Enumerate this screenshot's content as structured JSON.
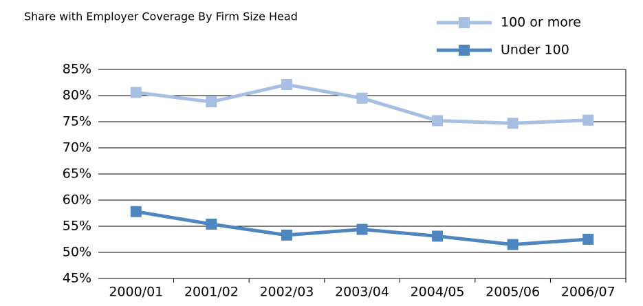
{
  "chart_data": {
    "type": "line",
    "title": "Share with Employer Coverage By Firm Size Head",
    "categories": [
      "2000/01",
      "2001/02",
      "2002/03",
      "2003/04",
      "2004/05",
      "2005/06",
      "2006/07"
    ],
    "series": [
      {
        "name": "100 or more",
        "color": "#a7bfe2",
        "values": [
          80.6,
          78.8,
          82.1,
          79.5,
          75.2,
          74.7,
          75.3
        ]
      },
      {
        "name": "Under 100",
        "color": "#4f86c0",
        "values": [
          57.8,
          55.4,
          53.3,
          54.4,
          53.1,
          51.5,
          52.5
        ]
      }
    ],
    "ylim": [
      45,
      85
    ],
    "yticks": [
      {
        "value": 45,
        "label": "45%"
      },
      {
        "value": 50,
        "label": "50%"
      },
      {
        "value": 55,
        "label": "55%"
      },
      {
        "value": 60,
        "label": "60%"
      },
      {
        "value": 65,
        "label": "65%"
      },
      {
        "value": 70,
        "label": "70%"
      },
      {
        "value": 75,
        "label": "75%"
      },
      {
        "value": 80,
        "label": "80%"
      },
      {
        "value": 85,
        "label": "85%"
      }
    ],
    "grid": true,
    "legend": "top-right"
  }
}
